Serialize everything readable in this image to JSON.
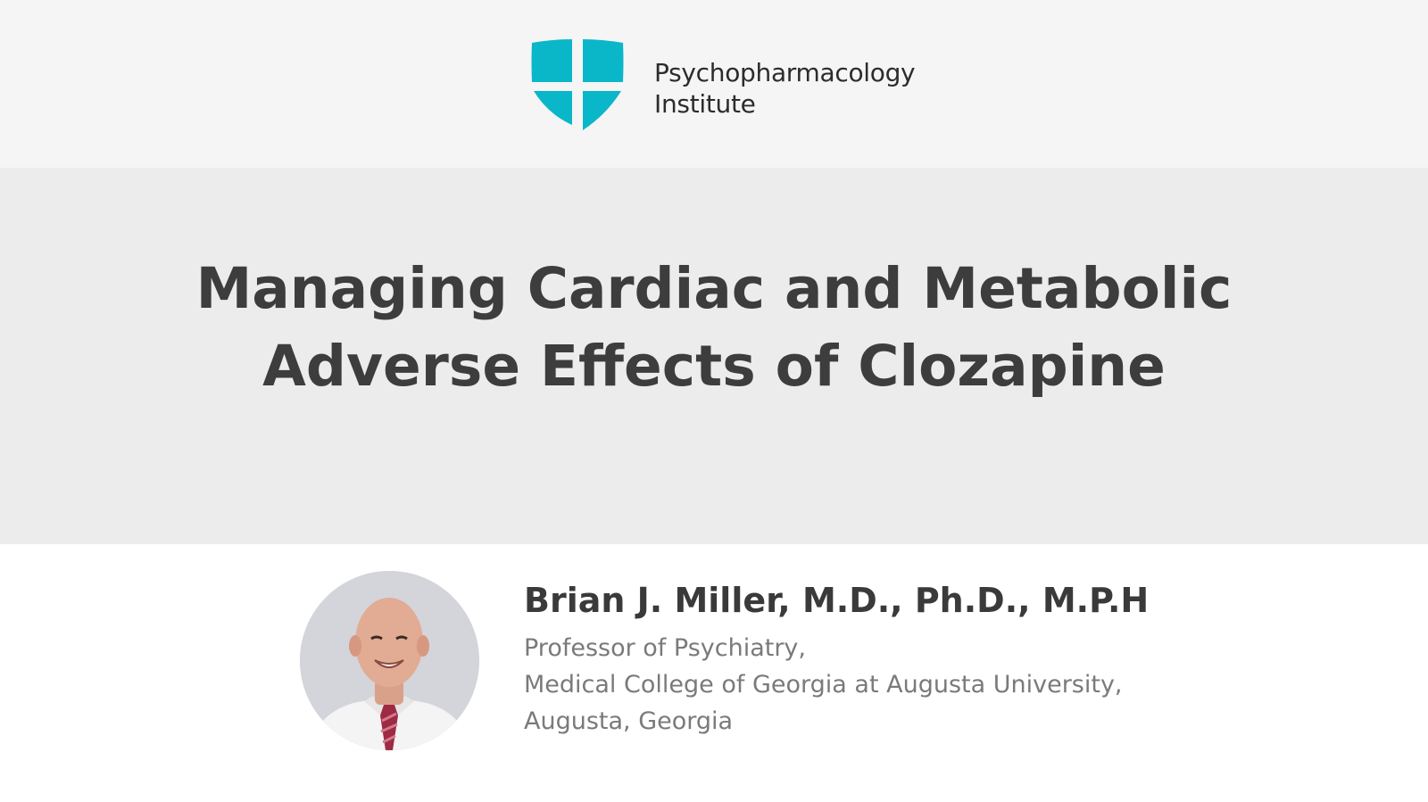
{
  "header": {
    "org_name_line1": "Psychopharmacology",
    "org_name_line2": "Institute",
    "logo_icon": "shield-cross-logo",
    "logo_color": "#0ab7c9"
  },
  "title": {
    "line1": "Managing Cardiac and Metabolic",
    "line2": "Adverse Effects of Clozapine"
  },
  "speaker": {
    "name": "Brian J. Miller, M.D., Ph.D., M.P.H",
    "affiliation_line1": "Professor of Psychiatry,",
    "affiliation_line2": "Medical College of Georgia at Augusta University,",
    "affiliation_line3": "Augusta, Georgia",
    "photo_icon": "speaker-portrait"
  },
  "colors": {
    "header_bg": "#f5f5f5",
    "title_band_bg": "#ececec",
    "title_text": "#3d3d3d",
    "affiliation_text": "#7a7a7a"
  }
}
